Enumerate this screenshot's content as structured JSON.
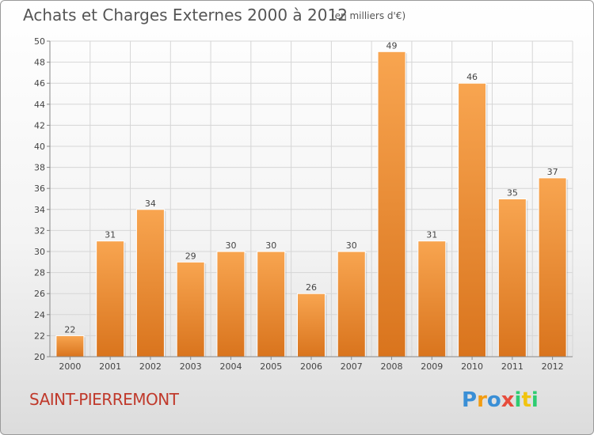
{
  "header": {
    "title": "Achats et Charges Externes 2000 à 2012",
    "unit": "(en milliers d'€)"
  },
  "footer": {
    "commune": "SAINT-PIERREMONT",
    "logo_letters": [
      {
        "char": "P",
        "color": "#3a8fd6"
      },
      {
        "char": "r",
        "color": "#f39c12"
      },
      {
        "char": "o",
        "color": "#3a8fd6"
      },
      {
        "char": "x",
        "color": "#e74c3c"
      },
      {
        "char": "i",
        "color": "#2ecc71"
      },
      {
        "char": "t",
        "color": "#f1c40f"
      },
      {
        "char": "i",
        "color": "#2ecc71"
      }
    ]
  },
  "colors": {
    "bar_top": "#f8a550",
    "bar_bottom": "#d9741d",
    "grid": "#d6d6d6",
    "axis_text": "#444444"
  },
  "chart_data": {
    "type": "bar",
    "categories": [
      "2000",
      "2001",
      "2002",
      "2003",
      "2004",
      "2005",
      "2006",
      "2007",
      "2008",
      "2009",
      "2010",
      "2011",
      "2012"
    ],
    "values": [
      22,
      31,
      34,
      29,
      30,
      30,
      26,
      30,
      49,
      31,
      46,
      35,
      37
    ],
    "title": "Achats et Charges Externes 2000 à 2012",
    "xlabel": "",
    "ylabel": "",
    "ylim": [
      20,
      50
    ],
    "yticks": [
      20,
      22,
      24,
      26,
      28,
      30,
      32,
      34,
      36,
      38,
      40,
      42,
      44,
      46,
      48,
      50
    ],
    "grid": true,
    "data_labels": true
  }
}
